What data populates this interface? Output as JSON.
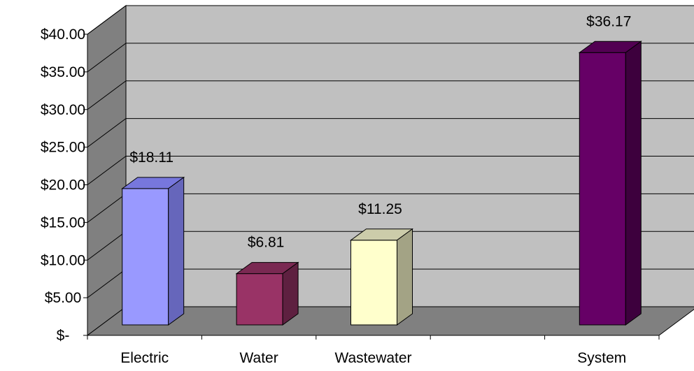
{
  "chart_data": {
    "type": "bar",
    "style": "3d-column",
    "categories": [
      "Electric",
      "Water",
      "Wastewater",
      "",
      "System"
    ],
    "values": [
      18.11,
      6.81,
      11.25,
      null,
      36.17
    ],
    "data_labels": [
      "$18.11",
      "$6.81",
      "$11.25",
      "",
      "$36.17"
    ],
    "y_tick_labels": [
      "$-",
      "$5.00",
      "$10.00",
      "$15.00",
      "$20.00",
      "$25.00",
      "$30.00",
      "$35.00",
      "$40.00"
    ],
    "ylim": [
      0,
      40
    ],
    "y_step": 5,
    "title": "",
    "xlabel": "",
    "ylabel": "",
    "grid": true,
    "legend": "none",
    "colors": {
      "wall": "#c0c0c0",
      "side_wall": "#808080",
      "floor": "#808080",
      "gridline": "#000000",
      "bars": [
        {
          "front": "#9999ff",
          "top": "#7777dd",
          "side": "#6666bb"
        },
        {
          "front": "#993366",
          "top": "#7a2952",
          "side": "#5e2040"
        },
        {
          "front": "#ffffcc",
          "top": "#ccccaa",
          "side": "#a3a385"
        },
        null,
        {
          "front": "#660066",
          "top": "#520052",
          "side": "#3d003d"
        }
      ]
    }
  }
}
